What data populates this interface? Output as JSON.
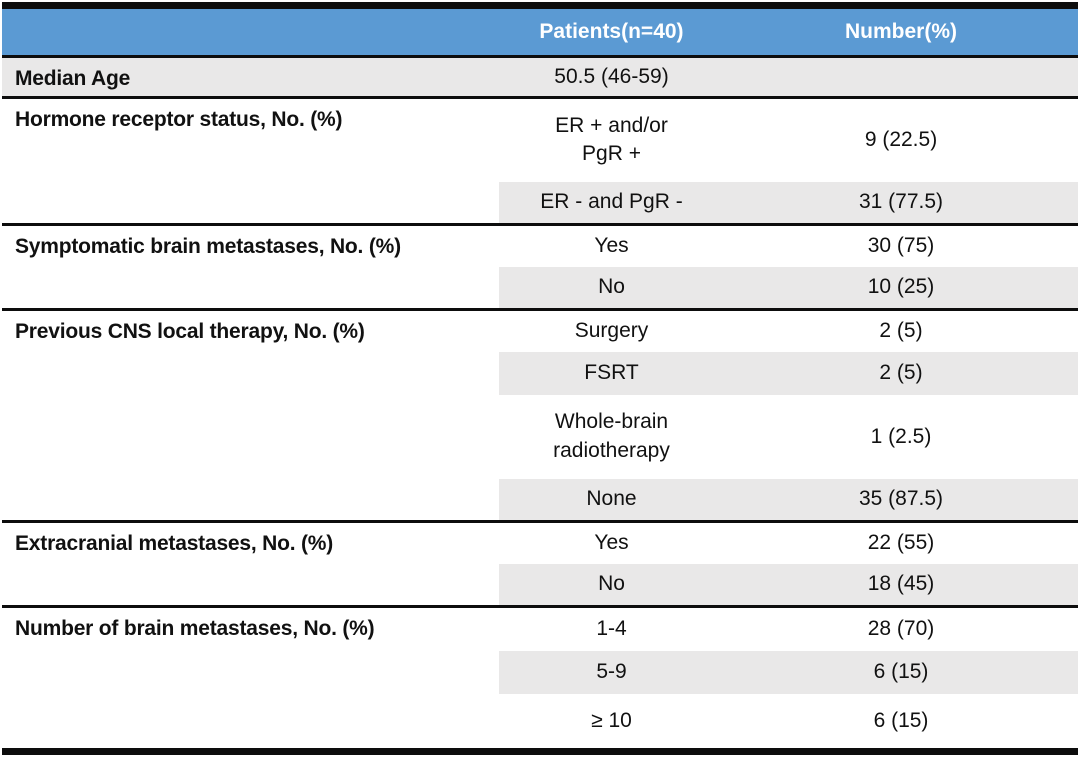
{
  "colors": {
    "header_bg": "#5b9ad3",
    "header_text": "#ffffff",
    "row_shade_bg": "#e9e8e8",
    "border": "#0d0d0d",
    "text": "#111111"
  },
  "table": {
    "columns": {
      "category": "",
      "patients": "Patients(n=40)",
      "number": "Number(%)"
    },
    "median_age": {
      "label": "Median Age",
      "patients": "50.5 (46-59)",
      "number": ""
    },
    "groups": [
      {
        "label": "Hormone receptor status, No. (%)",
        "rows": [
          {
            "patients": "ER + and/or\nPgR +",
            "number": "9 (22.5)"
          },
          {
            "patients": "ER - and PgR -",
            "number": "31 (77.5)"
          }
        ]
      },
      {
        "label": "Symptomatic brain metastases, No. (%)",
        "rows": [
          {
            "patients": "Yes",
            "number": "30 (75)"
          },
          {
            "patients": "No",
            "number": "10 (25)"
          }
        ]
      },
      {
        "label": "Previous CNS local therapy, No. (%)",
        "rows": [
          {
            "patients": "Surgery",
            "number": "2 (5)"
          },
          {
            "patients": "FSRT",
            "number": "2 (5)"
          },
          {
            "patients": "Whole-brain\nradiotherapy",
            "number": "1 (2.5)"
          },
          {
            "patients": "None",
            "number": "35 (87.5)"
          }
        ]
      },
      {
        "label": "Extracranial metastases, No. (%)",
        "rows": [
          {
            "patients": "Yes",
            "number": "22 (55)"
          },
          {
            "patients": "No",
            "number": "18 (45)"
          }
        ]
      },
      {
        "label": "Number of brain metastases, No. (%)",
        "rows": [
          {
            "patients": "1-4",
            "number": "28 (70)"
          },
          {
            "patients": "5-9",
            "number": "6 (15)"
          },
          {
            "patients": "≥ 10",
            "number": "6 (15)"
          }
        ]
      }
    ]
  }
}
